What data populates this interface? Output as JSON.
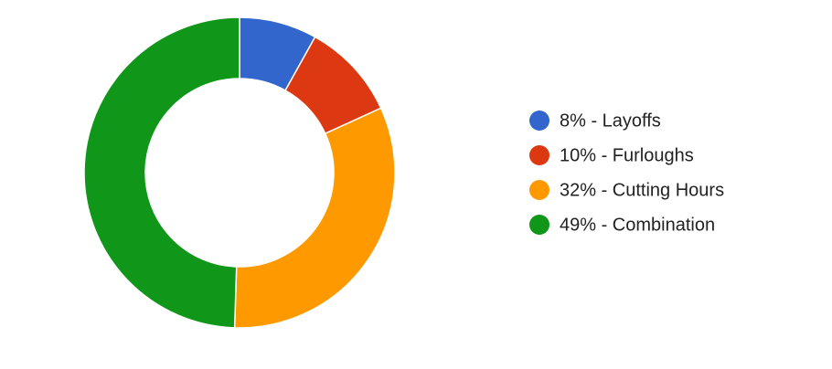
{
  "chart_data": {
    "type": "donut",
    "categories": [
      "8% - Layoffs",
      "10% - Furloughs",
      "32% - Cutting Hours",
      "49% - Combination"
    ],
    "values": [
      8,
      10,
      32,
      49
    ],
    "colors": [
      "#3366cc",
      "#dc3912",
      "#ff9900",
      "#109618"
    ],
    "legend": "right"
  }
}
